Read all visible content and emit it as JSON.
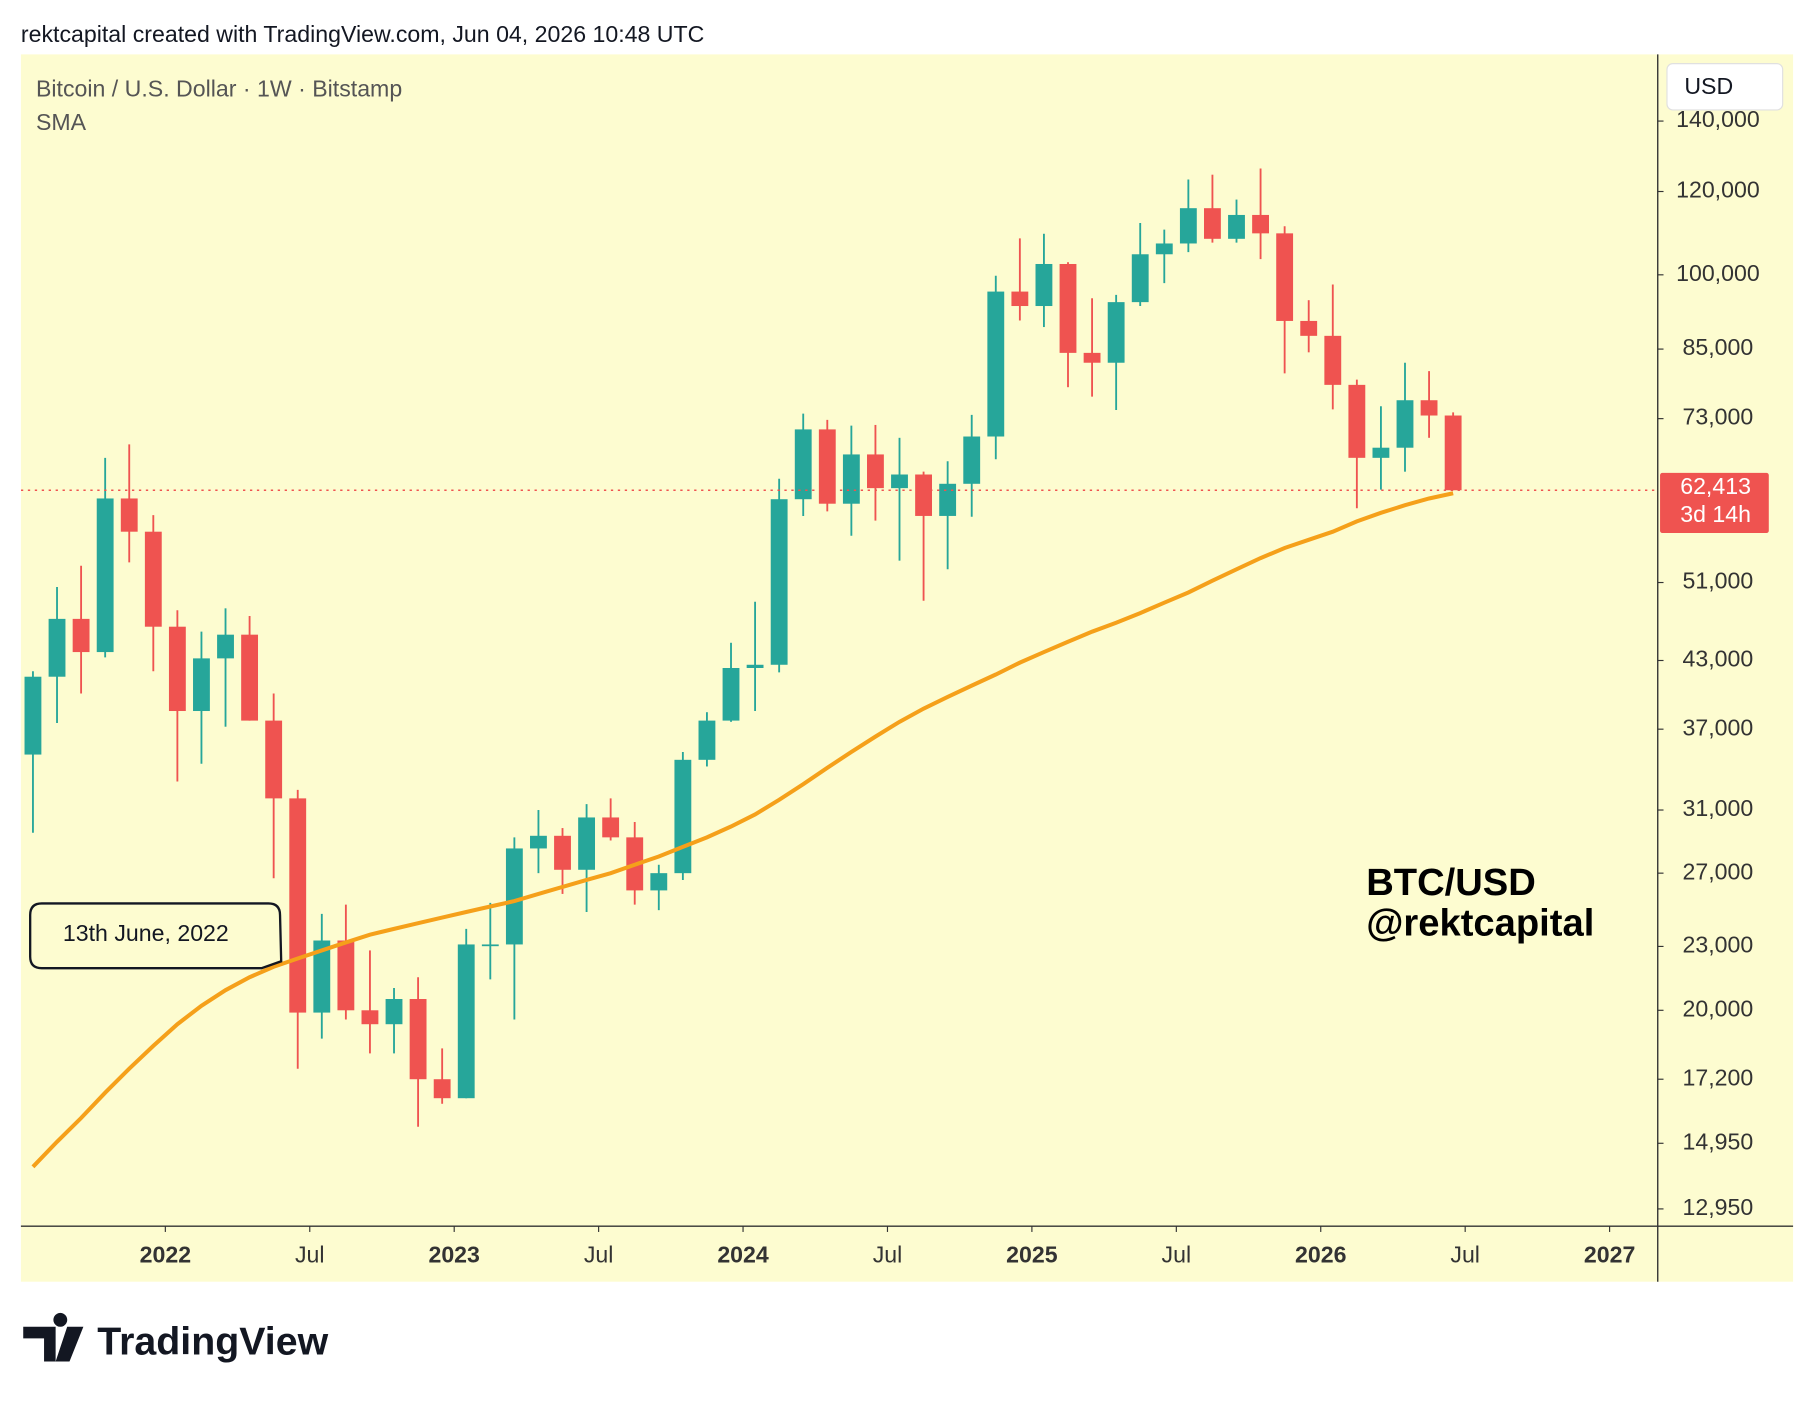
{
  "header": "rektcapital created with TradingView.com, Jun 04, 2026 10:48 UTC",
  "footer_brand": "TradingView",
  "chart_data": {
    "type": "candlestick",
    "title": "Bitcoin / U.S. Dollar · 1W · Bitstamp",
    "currency": "USD",
    "log_scale": true,
    "x": [
      "2021-07",
      "2021-08",
      "2021-09",
      "2021-10",
      "2021-11",
      "2021-12",
      "2022-01",
      "2022-02",
      "2022-03",
      "2022-04",
      "2022-05",
      "2022-06",
      "2022-07",
      "2022-08",
      "2022-09",
      "2022-10",
      "2022-11",
      "2022-12",
      "2023-01",
      "2023-02",
      "2023-03",
      "2023-04",
      "2023-05",
      "2023-06",
      "2023-07",
      "2023-08",
      "2023-09",
      "2023-10",
      "2023-11",
      "2023-12",
      "2024-01",
      "2024-02",
      "2024-03",
      "2024-04",
      "2024-05",
      "2024-06",
      "2024-07",
      "2024-08",
      "2024-09",
      "2024-10",
      "2024-11",
      "2024-12",
      "2025-01",
      "2025-02",
      "2025-03",
      "2025-04",
      "2025-05",
      "2025-06",
      "2025-07",
      "2025-08",
      "2025-09",
      "2025-10",
      "2025-11",
      "2025-12",
      "2026-01",
      "2026-02",
      "2026-03",
      "2026-04",
      "2026-05",
      "2026-06"
    ],
    "open": [
      35000,
      41500,
      47100,
      43800,
      61300,
      57000,
      46300,
      38500,
      43200,
      45500,
      37700,
      31800,
      19900,
      23300,
      20000,
      19400,
      20500,
      17200,
      16500,
      23100,
      23100,
      28500,
      29300,
      27200,
      30500,
      29200,
      26000,
      27000,
      34600,
      37700,
      42300,
      42600,
      61200,
      71300,
      60600,
      67500,
      62700,
      64600,
      59000,
      63300,
      70200,
      96400,
      93400,
      102400,
      84300,
      82500,
      94200,
      104600,
      107100,
      115700,
      108200,
      114000,
      109500,
      90400,
      87500,
      78600,
      67000,
      68500,
      76000,
      73500
    ],
    "high": [
      42000,
      50500,
      52900,
      67000,
      69000,
      59100,
      48000,
      45800,
      48200,
      47400,
      40000,
      32400,
      24700,
      25200,
      22800,
      21000,
      21500,
      18400,
      23900,
      25300,
      29200,
      31000,
      29800,
      31400,
      31800,
      30200,
      27500,
      35200,
      38400,
      44700,
      48900,
      64000,
      73800,
      72800,
      71900,
      72000,
      70000,
      65000,
      66500,
      73600,
      99800,
      108300,
      109400,
      102800,
      95000,
      95700,
      112000,
      110400,
      123200,
      124500,
      117900,
      126200,
      111200,
      94600,
      97900,
      79500,
      75000,
      82500,
      81000,
      74000
    ],
    "low": [
      29500,
      37500,
      40000,
      43300,
      53300,
      42000,
      33000,
      34300,
      37200,
      37700,
      26700,
      17600,
      18800,
      19600,
      18200,
      18200,
      15500,
      16300,
      16500,
      21400,
      19600,
      27000,
      25800,
      24800,
      29000,
      25200,
      24900,
      26600,
      34100,
      37600,
      38500,
      41900,
      59000,
      59600,
      56500,
      58400,
      53500,
      49000,
      52500,
      58900,
      66800,
      90500,
      89200,
      78200,
      76600,
      74400,
      93400,
      98200,
      105100,
      107300,
      107300,
      103500,
      80600,
      84400,
      74500,
      60000,
      62500,
      65000,
      70000,
      62413
    ],
    "close": [
      41500,
      47100,
      43800,
      61300,
      57000,
      46300,
      38500,
      43200,
      45500,
      37700,
      31800,
      19900,
      23300,
      20000,
      19400,
      20500,
      17200,
      16500,
      23100,
      23100,
      28500,
      29300,
      27200,
      30500,
      29200,
      26000,
      27000,
      34600,
      37700,
      42300,
      42600,
      61200,
      71300,
      60600,
      67500,
      62700,
      64600,
      59000,
      63300,
      70200,
      96400,
      93400,
      102400,
      84300,
      82500,
      94200,
      104600,
      107100,
      115700,
      108200,
      114000,
      109500,
      90400,
      87500,
      78600,
      67000,
      68500,
      76000,
      73500,
      62413
    ],
    "up_color": "#26a69a",
    "down_color": "#ef5350",
    "overlay": {
      "name": "SMA",
      "color": "#f5a01a",
      "values": [
        14200,
        15000,
        15800,
        16700,
        17600,
        18500,
        19400,
        20200,
        20900,
        21500,
        22000,
        22400,
        22800,
        23200,
        23600,
        23900,
        24200,
        24500,
        24800,
        25100,
        25400,
        25800,
        26200,
        26600,
        27000,
        27500,
        28000,
        28600,
        29200,
        29900,
        30700,
        31700,
        32800,
        34000,
        35200,
        36400,
        37600,
        38700,
        39700,
        40700,
        41700,
        42800,
        43800,
        44800,
        45800,
        46700,
        47700,
        48800,
        49900,
        51200,
        52500,
        53800,
        55000,
        56000,
        57000,
        58300,
        59400,
        60400,
        61300,
        62000
      ]
    },
    "last_price": {
      "value": 62413,
      "label": "62,413",
      "countdown": "3d 14h"
    },
    "xlim": [
      "2021-07",
      "2027-03"
    ],
    "xticks": [
      {
        "value": "2022-01",
        "label": "2022"
      },
      {
        "value": "2022-07",
        "label": "Jul"
      },
      {
        "value": "2023-01",
        "label": "2023"
      },
      {
        "value": "2023-07",
        "label": "Jul"
      },
      {
        "value": "2024-01",
        "label": "2024"
      },
      {
        "value": "2024-07",
        "label": "Jul"
      },
      {
        "value": "2025-01",
        "label": "2025"
      },
      {
        "value": "2025-07",
        "label": "Jul"
      },
      {
        "value": "2026-01",
        "label": "2026"
      },
      {
        "value": "2026-07",
        "label": "Jul"
      },
      {
        "value": "2027-01",
        "label": "2027"
      }
    ],
    "ylim": [
      12470,
      162000
    ],
    "yticks": [
      {
        "value": 12950,
        "label": "12,950"
      },
      {
        "value": 14950,
        "label": "14,950"
      },
      {
        "value": 17200,
        "label": "17,200"
      },
      {
        "value": 20000,
        "label": "20,000"
      },
      {
        "value": 23000,
        "label": "23,000"
      },
      {
        "value": 27000,
        "label": "27,000"
      },
      {
        "value": 31000,
        "label": "31,000"
      },
      {
        "value": 37000,
        "label": "37,000"
      },
      {
        "value": 43000,
        "label": "43,000"
      },
      {
        "value": 51000,
        "label": "51,000"
      },
      {
        "value": 73000,
        "label": "73,000"
      },
      {
        "value": 85000,
        "label": "85,000"
      },
      {
        "value": 100000,
        "label": "100,000"
      },
      {
        "value": 120000,
        "label": "120,000"
      },
      {
        "value": 140000,
        "label": "140,000"
      }
    ],
    "annotations": [
      {
        "text": "13th June, 2022"
      }
    ],
    "watermark": [
      "BTC/USD",
      "@rektcapital"
    ]
  }
}
